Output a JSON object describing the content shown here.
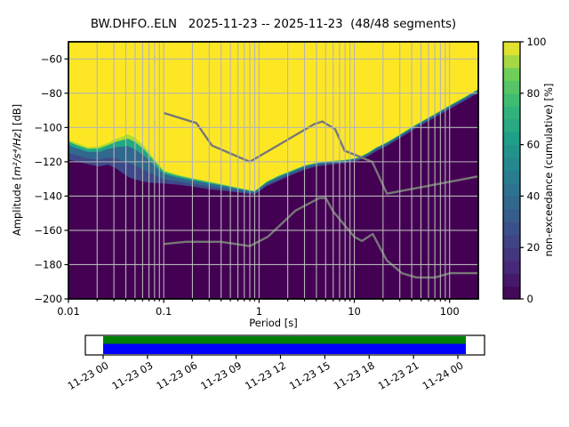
{
  "title": {
    "text": "BW.DHFO..ELN   2025-11-23 -- 2025-11-23  (48/48 segments)"
  },
  "axes": {
    "xlabel": "Period [s]",
    "ylabel_prefix": "Amplitude [",
    "ylabel_math": "m²/s⁴/Hz",
    "ylabel_suffix": "] [dB]",
    "x_scale": "log",
    "xlim": [
      0.01,
      200
    ],
    "ylim": [
      -200,
      -50
    ],
    "x_ticks": [
      {
        "value": 0.01,
        "label": "0.01"
      },
      {
        "value": 0.1,
        "label": "0.1"
      },
      {
        "value": 1,
        "label": "1"
      },
      {
        "value": 10,
        "label": "10"
      },
      {
        "value": 100,
        "label": "100"
      }
    ],
    "y_ticks": [
      {
        "value": -60,
        "label": "−60"
      },
      {
        "value": -80,
        "label": "−80"
      },
      {
        "value": -100,
        "label": "−100"
      },
      {
        "value": -120,
        "label": "−120"
      },
      {
        "value": -140,
        "label": "−140"
      },
      {
        "value": -160,
        "label": "−160"
      },
      {
        "value": -180,
        "label": "−180"
      },
      {
        "value": -200,
        "label": "−200"
      }
    ],
    "grid_color": "#b5b5b5",
    "spine_color": "#000000"
  },
  "colorbar": {
    "label": "non-exceedance (cumulative) [%]",
    "ticks": [
      {
        "value": 0,
        "label": "0"
      },
      {
        "value": 20,
        "label": "20"
      },
      {
        "value": 40,
        "label": "40"
      },
      {
        "value": 60,
        "label": "60"
      },
      {
        "value": 80,
        "label": "80"
      },
      {
        "value": 100,
        "label": "100"
      }
    ],
    "range": [
      0,
      100
    ],
    "colormap": "viridis",
    "steps": 20
  },
  "chart_data": {
    "type": "heatmap",
    "title": "BW.DHFO..ELN   2025-11-23 -- 2025-11-23  (48/48 segments)",
    "xlabel": "Period [s]",
    "ylabel": "Amplitude [m^2/s^4/Hz] [dB]",
    "x_scale": "log",
    "xlim": [
      0.01,
      200
    ],
    "ylim": [
      -200,
      -50
    ],
    "colorbar_label": "non-exceedance (cumulative) [%]",
    "clim": [
      0,
      100
    ],
    "grid": true,
    "viridis_stops": [
      [
        0.0,
        "#440154"
      ],
      [
        0.125,
        "#482878"
      ],
      [
        0.25,
        "#3e4a89"
      ],
      [
        0.375,
        "#31688e"
      ],
      [
        0.5,
        "#26828e"
      ],
      [
        0.625,
        "#1f9e89"
      ],
      [
        0.75,
        "#35b779"
      ],
      [
        0.875,
        "#6ece58"
      ],
      [
        1.0,
        "#fde725"
      ]
    ],
    "fill_100pct_color": "#fde725",
    "fill_0pct_color": "#440154",
    "boundary_note": "per period: dB level where non-exceedance reaches 100% (top) and drops to 0% (bot)",
    "boundary": [
      {
        "period": 0.01,
        "top": -107.0,
        "bot": -120.0
      },
      {
        "period": 0.012,
        "top": -109.0,
        "bot": -121.0
      },
      {
        "period": 0.016,
        "top": -111.5,
        "bot": -122.5
      },
      {
        "period": 0.021,
        "top": -111.0,
        "bot": -124.0
      },
      {
        "period": 0.026,
        "top": -109.0,
        "bot": -123.0
      },
      {
        "period": 0.032,
        "top": -106.5,
        "bot": -126.0
      },
      {
        "period": 0.042,
        "top": -104.0,
        "bot": -131.5
      },
      {
        "period": 0.05,
        "top": -106.0,
        "bot": -133.0
      },
      {
        "period": 0.063,
        "top": -111.0,
        "bot": -134.0
      },
      {
        "period": 0.08,
        "top": -118.5,
        "bot": -134.0
      },
      {
        "period": 0.1,
        "top": -125.0,
        "bot": -133.5
      },
      {
        "period": 0.14,
        "top": -127.5,
        "bot": -134.0
      },
      {
        "period": 0.2,
        "top": -129.5,
        "bot": -135.0
      },
      {
        "period": 0.3,
        "top": -131.5,
        "bot": -136.5
      },
      {
        "period": 0.45,
        "top": -133.5,
        "bot": -137.5
      },
      {
        "period": 0.65,
        "top": -135.5,
        "bot": -138.5
      },
      {
        "period": 0.9,
        "top": -137.0,
        "bot": -139.5
      },
      {
        "period": 1.2,
        "top": -131.5,
        "bot": -134.5
      },
      {
        "period": 1.6,
        "top": -128.0,
        "bot": -131.5
      },
      {
        "period": 2.2,
        "top": -125.0,
        "bot": -128.0
      },
      {
        "period": 3.0,
        "top": -122.0,
        "bot": -125.0
      },
      {
        "period": 4.0,
        "top": -120.5,
        "bot": -123.0
      },
      {
        "period": 5.5,
        "top": -119.5,
        "bot": -122.0
      },
      {
        "period": 8.0,
        "top": -118.8,
        "bot": -121.0
      },
      {
        "period": 11.0,
        "top": -117.5,
        "bot": -119.5
      },
      {
        "period": 14.0,
        "top": -114.5,
        "bot": -117.0
      },
      {
        "period": 17.0,
        "top": -111.5,
        "bot": -114.0
      },
      {
        "period": 22.0,
        "top": -108.5,
        "bot": -111.0
      },
      {
        "period": 30.0,
        "top": -104.0,
        "bot": -106.5
      },
      {
        "period": 45.0,
        "top": -98.0,
        "bot": -100.5
      },
      {
        "period": 70.0,
        "top": -92.0,
        "bot": -94.5
      },
      {
        "period": 100.0,
        "top": -87.0,
        "bot": -89.5
      },
      {
        "period": 140.0,
        "top": -82.5,
        "bot": -85.0
      },
      {
        "period": 200.0,
        "top": -77.5,
        "bot": -80.0
      }
    ],
    "transition_layers": [
      {
        "f": 0.0,
        "color": "#b2dd2c"
      },
      {
        "f": 0.09,
        "color": "#22a884"
      },
      {
        "f": 0.25,
        "color": "#31688e"
      },
      {
        "f": 0.6,
        "color": "#3e4989"
      },
      {
        "f": 0.9,
        "color": "#440154"
      }
    ],
    "noise_models": {
      "color": "#777777",
      "nhnm": [
        [
          0.1,
          -91.5
        ],
        [
          0.22,
          -97.4
        ],
        [
          0.32,
          -110.5
        ],
        [
          0.8,
          -120.0
        ],
        [
          3.8,
          -98.0
        ],
        [
          4.6,
          -96.5
        ],
        [
          6.3,
          -101.0
        ],
        [
          7.9,
          -113.5
        ],
        [
          15.4,
          -120.0
        ],
        [
          22.0,
          -138.6
        ],
        [
          200.0,
          -128.5
        ]
      ],
      "nlnm": [
        [
          0.1,
          -168.0
        ],
        [
          0.17,
          -166.7
        ],
        [
          0.4,
          -166.7
        ],
        [
          0.8,
          -169.2
        ],
        [
          1.24,
          -163.7
        ],
        [
          2.4,
          -148.6
        ],
        [
          4.3,
          -141.1
        ],
        [
          5.0,
          -141.1
        ],
        [
          6.0,
          -149.0
        ],
        [
          10.0,
          -163.8
        ],
        [
          12.0,
          -166.2
        ],
        [
          15.6,
          -162.1
        ],
        [
          21.9,
          -177.5
        ],
        [
          31.6,
          -185.0
        ],
        [
          45.0,
          -187.5
        ],
        [
          70.0,
          -187.5
        ],
        [
          101.0,
          -185.0
        ],
        [
          200.0,
          -185.0
        ]
      ]
    }
  },
  "timeline": {
    "covered_color_top": "#008000",
    "covered_color_bottom": "#0000ff",
    "box_color": "#ffffff",
    "border_color": "#000000",
    "tick_labels": [
      "11-23 00",
      "11-23 03",
      "11-23 06",
      "11-23 09",
      "11-23 12",
      "11-23 15",
      "11-23 18",
      "11-23 21",
      "11-24 00"
    ]
  }
}
